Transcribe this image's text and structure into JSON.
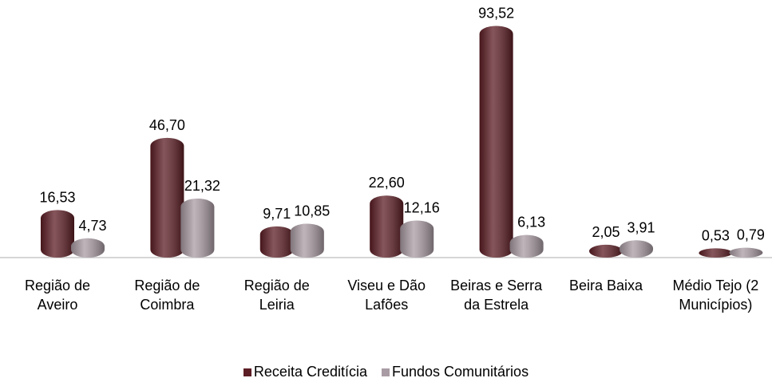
{
  "chart_data": {
    "type": "bar",
    "categories": [
      "Região de Aveiro",
      "Região de Coimbra",
      "Região de Leiria",
      "Viseu e Dão Lafões",
      "Beiras e Serra da Estrela",
      "Beira Baixa",
      "Médio Tejo (2 Municípios)"
    ],
    "series": [
      {
        "name": "Receita Creditícia",
        "color": "#5c1d24",
        "values": [
          16.53,
          46.7,
          9.71,
          22.6,
          93.52,
          2.05,
          0.53
        ],
        "value_labels": [
          "16,53",
          "46,70",
          "9,71",
          "22,60",
          "93,52",
          "2,05",
          "0,53"
        ]
      },
      {
        "name": "Fundos Comunitários",
        "color": "#a99ba3",
        "values": [
          4.73,
          21.32,
          10.85,
          12.16,
          6.13,
          3.91,
          0.79
        ],
        "value_labels": [
          "4,73",
          "21,32",
          "10,85",
          "12,16",
          "6,13",
          "3,91",
          "0,79"
        ]
      }
    ]
  }
}
